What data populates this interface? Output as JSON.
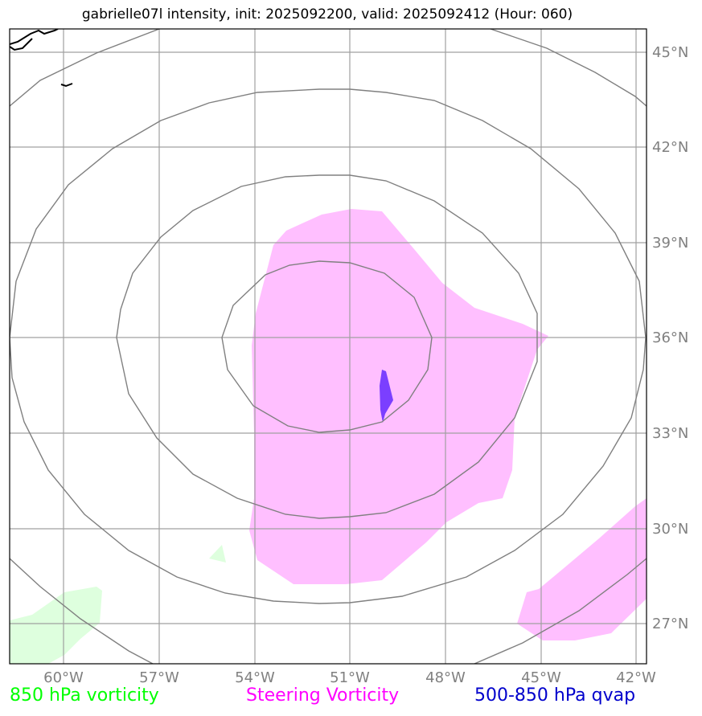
{
  "title": "gabrielle07l intensity, init: 2025092200, valid: 2025092412 (Hour: 060)",
  "lat_labels": [
    "45°N",
    "42°N",
    "39°N",
    "36°N",
    "33°N",
    "30°N",
    "27°N"
  ],
  "lon_labels": [
    "60°W",
    "57°W",
    "54°W",
    "51°W",
    "48°W",
    "45°W",
    "42°W"
  ],
  "legend": {
    "vorticity_850": "850 hPa vorticity",
    "steering_vorticity": "Steering Vorticity",
    "qvap": "500-850 hPa qvap"
  },
  "colors": {
    "vorticity_850": "#00ff00",
    "steering_vorticity": "#ff00ff",
    "qvap": "#0000cc",
    "steering_fill": "#ffbfff",
    "vorticity_fill": "#deffde",
    "qvap_fill": "#7b3fff",
    "contour": "#808080",
    "grid": "#a0a0a0"
  }
}
